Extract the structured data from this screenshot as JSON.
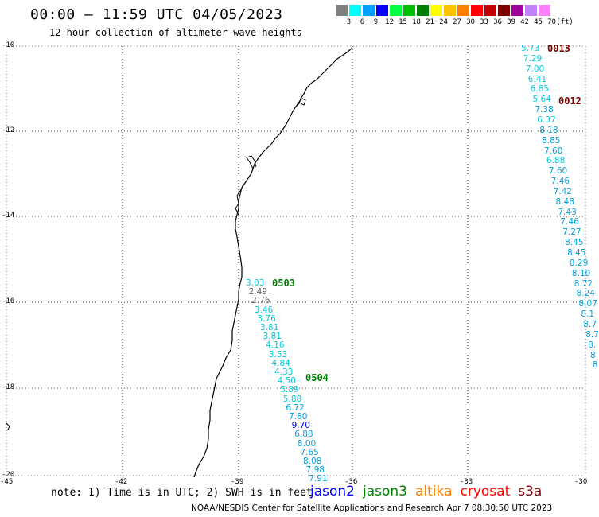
{
  "header": {
    "title": "00:00 – 11:59 UTC 04/05/2023",
    "subtitle": "12 hour collection of altimeter wave heights"
  },
  "legend": {
    "unit": "(ft)",
    "bins": [
      {
        "label": "3",
        "color": "#808080"
      },
      {
        "label": "6",
        "color": "#00ffff"
      },
      {
        "label": "9",
        "color": "#00a0ff"
      },
      {
        "label": "12",
        "color": "#0000ff"
      },
      {
        "label": "15",
        "color": "#00ff40"
      },
      {
        "label": "18",
        "color": "#00c000"
      },
      {
        "label": "21",
        "color": "#008000"
      },
      {
        "label": "24",
        "color": "#ffff00"
      },
      {
        "label": "27",
        "color": "#ffc000"
      },
      {
        "label": "30",
        "color": "#ff8000"
      },
      {
        "label": "33",
        "color": "#ff0000"
      },
      {
        "label": "36",
        "color": "#c00000"
      },
      {
        "label": "39",
        "color": "#800000"
      },
      {
        "label": "42",
        "color": "#a000a0"
      },
      {
        "label": "45",
        "color": "#c080ff"
      },
      {
        "label": "70",
        "color": "#ff80ff"
      }
    ]
  },
  "map": {
    "lat_ticks": [
      "-10",
      "-12",
      "-14",
      "-16",
      "-18",
      "-20"
    ],
    "lon_ticks": [
      "-45",
      "-42",
      "-39",
      "-36",
      "-33",
      "-30"
    ],
    "passes": [
      {
        "id": "0013",
        "color": "#800000"
      },
      {
        "id": "0012",
        "color": "#800000"
      },
      {
        "id": "0503",
        "color": "#008000"
      },
      {
        "id": "0504",
        "color": "#008000"
      }
    ],
    "east_track": [
      {
        "v": "5.73",
        "c": "#00ccdd"
      },
      {
        "v": "7.29",
        "c": "#00ccdd"
      },
      {
        "v": "7.00",
        "c": "#00ccdd"
      },
      {
        "v": "6.41",
        "c": "#00ccdd"
      },
      {
        "v": "6.85",
        "c": "#00ccdd"
      },
      {
        "v": "5.64",
        "c": "#00ccdd"
      },
      {
        "v": "7.38",
        "c": "#00a0e0"
      },
      {
        "v": "6.37",
        "c": "#00ccdd"
      },
      {
        "v": "8.18",
        "c": "#00a0e0"
      },
      {
        "v": "8.85",
        "c": "#00a0e0"
      },
      {
        "v": "7.60",
        "c": "#00a0e0"
      },
      {
        "v": "6.88",
        "c": "#00ccdd"
      },
      {
        "v": "7.60",
        "c": "#00a0e0"
      },
      {
        "v": "7.46",
        "c": "#00a0e0"
      },
      {
        "v": "7.42",
        "c": "#00a0e0"
      },
      {
        "v": "8.48",
        "c": "#00a0e0"
      },
      {
        "v": "7.43",
        "c": "#00a0e0"
      },
      {
        "v": "7.46",
        "c": "#00a0e0"
      },
      {
        "v": "7.27",
        "c": "#00a0e0"
      },
      {
        "v": "8.45",
        "c": "#00a0e0"
      },
      {
        "v": "8.45",
        "c": "#00a0e0"
      },
      {
        "v": "8.29",
        "c": "#00a0e0"
      },
      {
        "v": "8.10",
        "c": "#00a0e0"
      },
      {
        "v": "8.72",
        "c": "#00a0e0"
      },
      {
        "v": "8.24",
        "c": "#00a0e0"
      },
      {
        "v": "8.07",
        "c": "#00a0e0"
      },
      {
        "v": "8.1",
        "c": "#00a0e0"
      },
      {
        "v": "8.7",
        "c": "#00a0e0"
      },
      {
        "v": "8.7",
        "c": "#00a0e0"
      },
      {
        "v": "8.",
        "c": "#00a0e0"
      },
      {
        "v": "8",
        "c": "#00a0e0"
      },
      {
        "v": "8",
        "c": "#00a0e0"
      }
    ],
    "coastal_track": [
      {
        "v": "3.03",
        "c": "#00ccdd"
      },
      {
        "v": "2.49",
        "c": "#606060"
      },
      {
        "v": "2.76",
        "c": "#606060"
      },
      {
        "v": "3.46",
        "c": "#00ccdd"
      },
      {
        "v": "3.76",
        "c": "#00ccdd"
      },
      {
        "v": "3.81",
        "c": "#00ccdd"
      },
      {
        "v": "3.81",
        "c": "#00ccdd"
      },
      {
        "v": "4.16",
        "c": "#00ccdd"
      },
      {
        "v": "3.53",
        "c": "#00ccdd"
      },
      {
        "v": "4.84",
        "c": "#00ccdd"
      },
      {
        "v": "4.33",
        "c": "#00ccdd"
      },
      {
        "v": "4.50",
        "c": "#00ccdd"
      },
      {
        "v": "5.89",
        "c": "#00ccdd"
      },
      {
        "v": "5.88",
        "c": "#00ccdd"
      },
      {
        "v": "6.72",
        "c": "#00a0e0"
      },
      {
        "v": "7.80",
        "c": "#00a0e0"
      },
      {
        "v": "9.70",
        "c": "#0000ff"
      },
      {
        "v": "6.88",
        "c": "#00a0e0"
      },
      {
        "v": "8.00",
        "c": "#00a0e0"
      },
      {
        "v": "7.65",
        "c": "#00a0e0"
      },
      {
        "v": "8.08",
        "c": "#00a0e0"
      },
      {
        "v": "7.98",
        "c": "#00a0e0"
      },
      {
        "v": "7.91",
        "c": "#00a0e0"
      }
    ]
  },
  "footer": {
    "note": "note: 1) Time is in UTC; 2) SWH is in feet",
    "satellites": [
      {
        "name": "jason2",
        "color": "#0000ff"
      },
      {
        "name": "jason3",
        "color": "#008000"
      },
      {
        "name": "altika",
        "color": "#ff8000"
      },
      {
        "name": "cryosat",
        "color": "#ff0000"
      },
      {
        "name": "s3a",
        "color": "#800000"
      }
    ],
    "credit": "NOAA/NESDIS Center for Satellite Applications and Research   Apr  7 08:30:50 UTC 2023"
  }
}
